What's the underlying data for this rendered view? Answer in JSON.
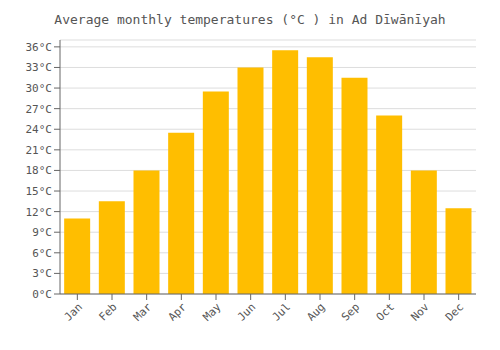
{
  "chart_data": {
    "type": "bar",
    "title": "Average monthly temperatures (°C ) in Ad Dīwānīyah",
    "categories": [
      "Jan",
      "Feb",
      "Mar",
      "Apr",
      "May",
      "Jun",
      "Jul",
      "Aug",
      "Sep",
      "Oct",
      "Nov",
      "Dec"
    ],
    "values": [
      11,
      13.5,
      18,
      23.5,
      29.5,
      33,
      35.5,
      34.5,
      31.5,
      26,
      18,
      12.5
    ],
    "color": "#FFBE00",
    "ylim": [
      0,
      37
    ],
    "yticks": [
      {
        "value": 0,
        "label": "0°C"
      },
      {
        "value": 3,
        "label": "3°C"
      },
      {
        "value": 6,
        "label": "6°C"
      },
      {
        "value": 9,
        "label": "9°C"
      },
      {
        "value": 12,
        "label": "12°C"
      },
      {
        "value": 15,
        "label": "15°C"
      },
      {
        "value": 18,
        "label": "18°C"
      },
      {
        "value": 21,
        "label": "21°C"
      },
      {
        "value": 24,
        "label": "24°C"
      },
      {
        "value": 27,
        "label": "27°C"
      },
      {
        "value": 30,
        "label": "30°C"
      },
      {
        "value": 33,
        "label": "33°C"
      },
      {
        "value": 36,
        "label": "36°C"
      }
    ],
    "grid": true
  }
}
